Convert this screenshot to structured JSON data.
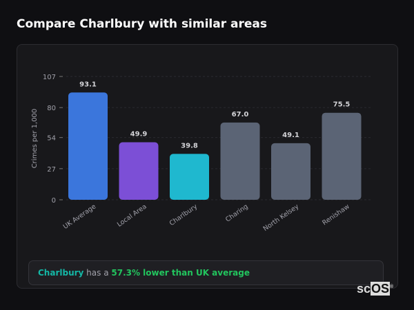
{
  "header": {
    "title": "Compare Charlbury with similar areas"
  },
  "chart_data": {
    "type": "bar",
    "title": "",
    "ylabel": "Crimes per 1,000",
    "xlabel": "",
    "ylim": [
      0,
      107
    ],
    "yticks": [
      0,
      27,
      54,
      80,
      107
    ],
    "categories": [
      "UK Average",
      "Local Area",
      "Charlbury",
      "Charing",
      "North Kelsey",
      "Renishaw"
    ],
    "values": [
      93.1,
      49.9,
      39.8,
      67.0,
      49.1,
      75.5
    ],
    "data_labels": [
      "93.1",
      "49.9",
      "39.8",
      "67.0",
      "49.1",
      "75.5"
    ],
    "colors": [
      "#3b76dc",
      "#7c4fd6",
      "#1fb8cf",
      "#5b6475",
      "#5b6475",
      "#5b6475"
    ],
    "grid": true
  },
  "summary": {
    "place": "Charlbury",
    "middle": " has a ",
    "comparison": "57.3% lower than UK average"
  },
  "logo": {
    "text": "scOS"
  }
}
